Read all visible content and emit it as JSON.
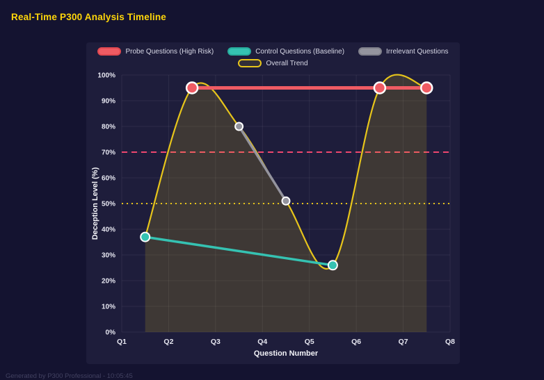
{
  "page": {
    "title": "Real-Time P300 Analysis Timeline",
    "footer": "Generated by P300 Professional - 10:05:45"
  },
  "colors": {
    "page_bg": "#141330",
    "panel_bg": "#1e1d3b",
    "title": "#ffd60a",
    "grid": "rgba(255,255,255,0.07)",
    "tick_text": "#e6e6f0",
    "axis_title_text": "#f2f2f7",
    "legend_text": "#d8d8e6",
    "footer_text": "#8585a8",
    "point_border": "#ffffff",
    "probe": "#ef5b63",
    "control": "#35c2b2",
    "irrelevant": "#94949e",
    "trend": "#e7c51b",
    "threshold_high": "#ef476f",
    "threshold_baseline": "#e7c51b"
  },
  "chart_data": {
    "type": "line",
    "title": "Real-Time P300 Analysis Timeline",
    "xlabel": "Question Number",
    "ylabel": "Deception Level (%)",
    "x_ticks": [
      "Q1",
      "Q2",
      "Q3",
      "Q4",
      "Q5",
      "Q6",
      "Q7",
      "Q8"
    ],
    "y_ticks": [
      "0%",
      "10%",
      "20%",
      "30%",
      "40%",
      "50%",
      "60%",
      "70%",
      "80%",
      "90%",
      "100%"
    ],
    "x_range": [
      1,
      8
    ],
    "ylim": [
      0,
      100
    ],
    "y_tick_step": 10,
    "y_tick_suffix": "%",
    "grid": true,
    "legend_position": "top",
    "legend_rows": [
      [
        {
          "label": "Probe Questions (High Risk)",
          "fill": "#ef5b63",
          "border": "#e04850"
        },
        {
          "label": "Control Questions (Baseline)",
          "fill": "#35c2b2",
          "border": "#27ab9c"
        },
        {
          "label": "Irrelevant Questions",
          "fill": "#94949e",
          "border": "#7f7f8a"
        }
      ],
      [
        {
          "label": "Overall Trend",
          "fill": "rgba(231,197,27,0.10)",
          "border": "#e7c51b"
        }
      ]
    ],
    "thresholds": [
      {
        "label": "high-risk-threshold",
        "y": 70,
        "color": "#ef476f",
        "dash": "8 6"
      },
      {
        "label": "baseline-threshold",
        "y": 50,
        "color": "#e7c51b",
        "dash": "2 5"
      }
    ],
    "series": [
      {
        "name": "Overall Trend",
        "color": "#e7c51b",
        "width": 2.2,
        "smooth": true,
        "fill": "rgba(231,197,27,0.16)",
        "point_radius": 0,
        "points": [
          [
            1.5,
            37
          ],
          [
            2.5,
            95
          ],
          [
            3.5,
            80
          ],
          [
            4.5,
            51
          ],
          [
            5.5,
            26
          ],
          [
            6.5,
            95
          ],
          [
            7.5,
            95
          ]
        ]
      },
      {
        "name": "Irrelevant Questions",
        "color": "#94949e",
        "width": 3.5,
        "smooth": false,
        "point_radius": 5.5,
        "point_border_width": 2,
        "points": [
          [
            3.5,
            80
          ],
          [
            4.5,
            51
          ]
        ]
      },
      {
        "name": "Control Questions (Baseline)",
        "color": "#35c2b2",
        "width": 3.5,
        "smooth": false,
        "point_radius": 6.5,
        "point_border_width": 2,
        "points": [
          [
            1.5,
            37
          ],
          [
            5.5,
            26
          ]
        ]
      },
      {
        "name": "Probe Questions (High Risk)",
        "color": "#ef5b63",
        "width": 5,
        "smooth": false,
        "point_radius": 8,
        "point_border_width": 2.5,
        "points": [
          [
            2.5,
            95
          ],
          [
            6.5,
            95
          ],
          [
            7.5,
            95
          ]
        ]
      }
    ]
  }
}
